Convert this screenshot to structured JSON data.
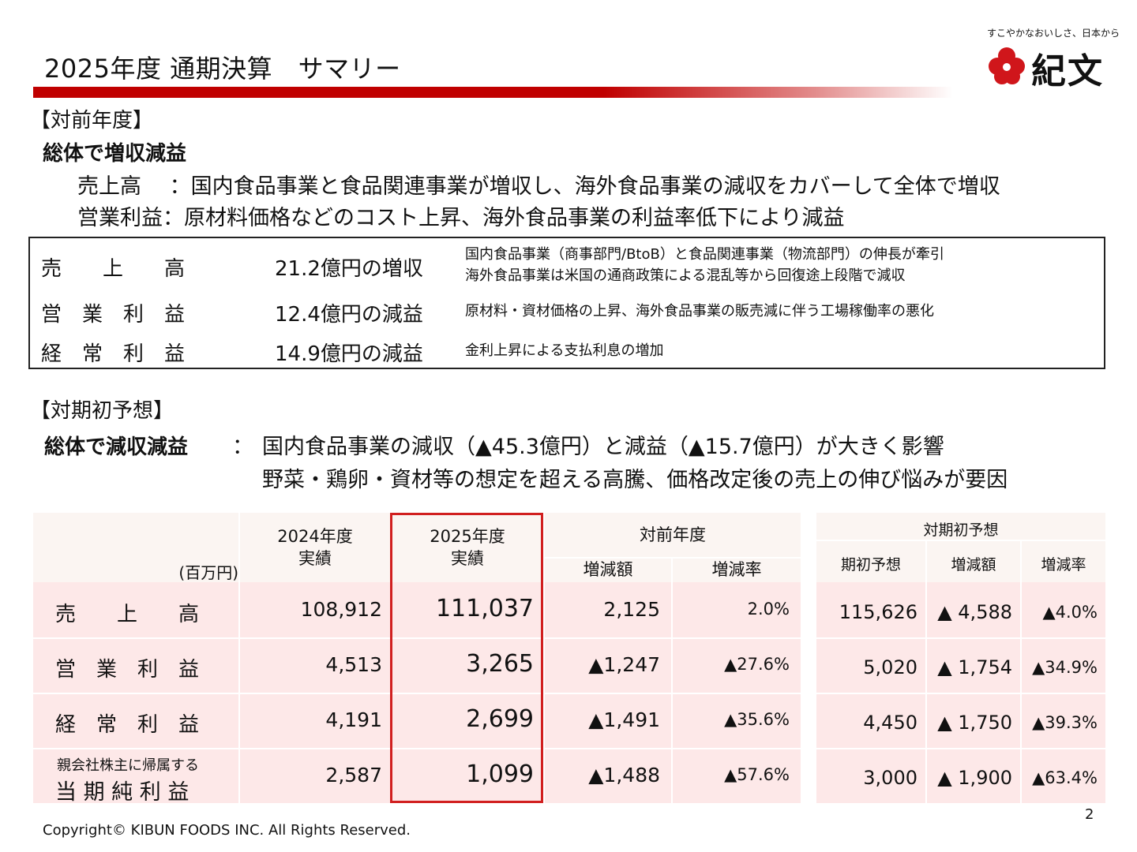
{
  "header": {
    "title": "2025年度 通期決算　サマリー",
    "logo_tagline": "すこやかなおいしさ、日本から",
    "logo_name": "紀文",
    "brand_color": "#c00000"
  },
  "yoy_section": {
    "heading": "【対前年度】",
    "summary": "総体で増収減益",
    "lines": [
      {
        "label": "売上高　  ：",
        "text": "国内食品事業と食品関連事業が増収し、海外食品事業の減収をカバーして全体で増収"
      },
      {
        "label": "営業利益：",
        "text": "原材料価格などのコスト上昇、海外食品事業の利益率低下により減益"
      }
    ],
    "box_rows": [
      {
        "label": "売　　上　　高",
        "amount": "21.2億円の増収",
        "notes": [
          "国内食品事業（商事部門/BtoB）と食品関連事業（物流部門）の伸長が牽引",
          "海外食品事業は米国の通商政策による混乱等から回復途上段階で減収"
        ]
      },
      {
        "label": "営　業　利　益",
        "amount": "12.4億円の減益",
        "notes": [
          "原材料・資材価格の上昇、海外食品事業の販売減に伴う工場稼働率の悪化"
        ]
      },
      {
        "label": "経　常　利　益",
        "amount": "14.9億円の減益",
        "notes": [
          "金利上昇による支払利息の増加"
        ]
      }
    ]
  },
  "forecast_section": {
    "heading": "【対期初予想】",
    "summary": "総体で減収減益",
    "colon": "：",
    "lines": [
      "国内食品事業の減収（▲45.3億円）と減益（▲15.7億円）が大きく影響",
      "野菜・鶏卵・資材等の想定を超える高騰、価格改定後の売上の伸び悩みが要因"
    ]
  },
  "table": {
    "unit": "(百万円)",
    "col_2024": "2024年度\n実績",
    "col_2025": "2025年度\n実績",
    "col_yoy": "対前年度",
    "col_yoy_diff": "増減額",
    "col_yoy_rate": "増減率",
    "col_fc": "対期初予想",
    "col_fc_plan": "期初予想",
    "col_fc_diff": "増減額",
    "col_fc_rate": "増減率",
    "rows": [
      {
        "label": "売　　上　　高",
        "sublabel": "",
        "v2024": "108,912",
        "v2025": "111,037",
        "yoy_diff": "2,125",
        "yoy_rate": "2.0%",
        "fc_plan": "115,626",
        "fc_diff": "▲ 4,588",
        "fc_rate": "▲4.0%"
      },
      {
        "label": "営　業　利　益",
        "sublabel": "",
        "v2024": "4,513",
        "v2025": "3,265",
        "yoy_diff": "▲1,247",
        "yoy_rate": "▲27.6%",
        "fc_plan": "5,020",
        "fc_diff": "▲ 1,754",
        "fc_rate": "▲34.9%"
      },
      {
        "label": "経　常　利　益",
        "sublabel": "",
        "v2024": "4,191",
        "v2025": "2,699",
        "yoy_diff": "▲1,491",
        "yoy_rate": "▲35.6%",
        "fc_plan": "4,450",
        "fc_diff": "▲ 1,750",
        "fc_rate": "▲39.3%"
      },
      {
        "label": "当 期 純 利 益",
        "sublabel": "親会社株主に帰属する",
        "v2024": "2,587",
        "v2025": "1,099",
        "yoy_diff": "▲1,488",
        "yoy_rate": "▲57.6%",
        "fc_plan": "3,000",
        "fc_diff": "▲ 1,900",
        "fc_rate": "▲63.4%"
      }
    ]
  },
  "footer": {
    "copyright": "Copyright©  KIBUN FOODS INC. All Rights Reserved.",
    "page": "2"
  }
}
